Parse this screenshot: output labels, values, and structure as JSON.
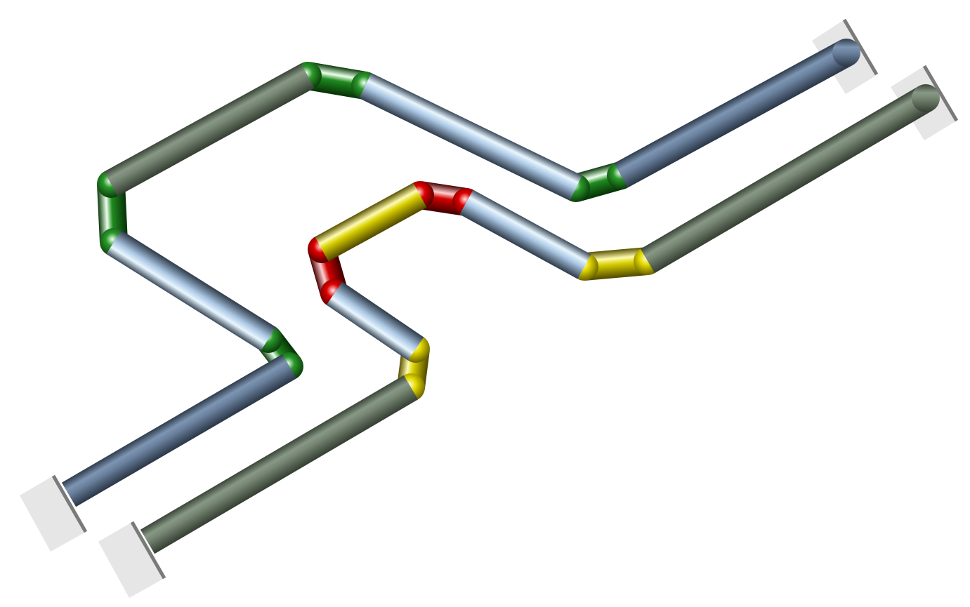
{
  "colors": {
    "background": "#ffffff",
    "mount_plate": "#e6e6e6",
    "mount_edge": "#7a7a7a",
    "blue_gray": "#6f86a3",
    "olive_gray": "#7a8a78",
    "light_blue": "#bcd6ef",
    "green": "#1f7a1f",
    "yellow": "#d9cf00",
    "red": "#cc0000"
  },
  "pipes": [
    {
      "name": "pipe-back",
      "segments": [
        {
          "name": "back-straight-lower-left",
          "color": "blue_gray"
        },
        {
          "name": "back-bend-lower",
          "color": "green"
        },
        {
          "name": "back-straight-middle-left",
          "color": "light_blue"
        },
        {
          "name": "back-bend-left",
          "color": "green"
        },
        {
          "name": "back-straight-upper-left",
          "color": "olive_gray"
        },
        {
          "name": "back-bend-top",
          "color": "green"
        },
        {
          "name": "back-straight-middle-right",
          "color": "light_blue"
        },
        {
          "name": "back-bend-right",
          "color": "green"
        },
        {
          "name": "back-straight-upper-right",
          "color": "blue_gray"
        }
      ]
    },
    {
      "name": "pipe-front",
      "segments": [
        {
          "name": "front-straight-lower-left",
          "color": "olive_gray"
        },
        {
          "name": "front-bend-lower",
          "color": "yellow"
        },
        {
          "name": "front-straight-middle-left",
          "color": "light_blue"
        },
        {
          "name": "front-bend-left",
          "color": "red"
        },
        {
          "name": "front-straight-upper-left",
          "color": "yellow"
        },
        {
          "name": "front-bend-top",
          "color": "red"
        },
        {
          "name": "front-straight-middle-right",
          "color": "light_blue"
        },
        {
          "name": "front-bend-right",
          "color": "yellow"
        },
        {
          "name": "front-straight-upper-right",
          "color": "olive_gray"
        }
      ]
    }
  ]
}
